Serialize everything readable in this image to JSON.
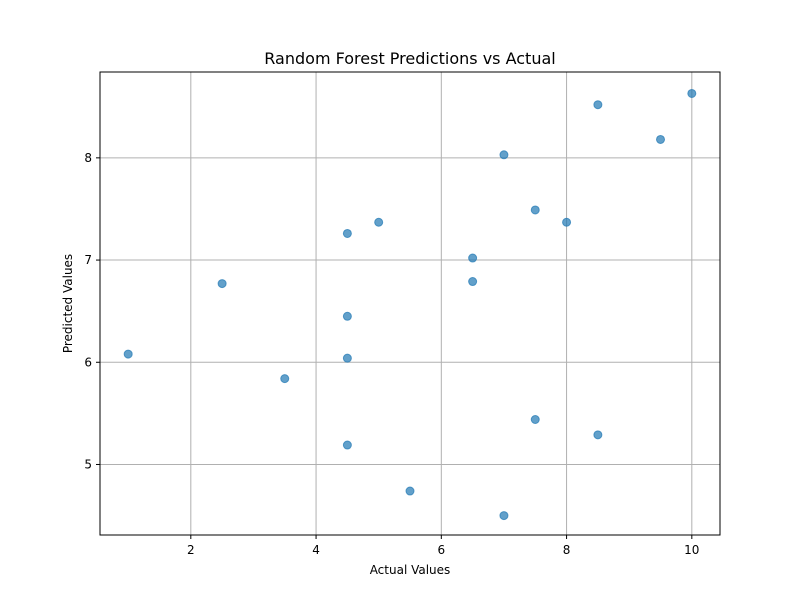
{
  "chart_data": {
    "type": "scatter",
    "title": "Random Forest Predictions vs Actual",
    "xlabel": "Actual Values",
    "ylabel": "Predicted Values",
    "xlim": [
      0.55,
      10.45
    ],
    "ylim": [
      4.31,
      8.84
    ],
    "xticks": [
      2,
      4,
      6,
      8,
      10
    ],
    "yticks": [
      5,
      6,
      7,
      8
    ],
    "grid": true,
    "color": "#1f77b4",
    "points": [
      {
        "x": 1.0,
        "y": 6.08
      },
      {
        "x": 2.5,
        "y": 6.77
      },
      {
        "x": 3.5,
        "y": 5.84
      },
      {
        "x": 4.5,
        "y": 7.26
      },
      {
        "x": 4.5,
        "y": 6.45
      },
      {
        "x": 4.5,
        "y": 6.04
      },
      {
        "x": 4.5,
        "y": 5.19
      },
      {
        "x": 5.0,
        "y": 7.37
      },
      {
        "x": 5.5,
        "y": 4.74
      },
      {
        "x": 6.5,
        "y": 7.02
      },
      {
        "x": 6.5,
        "y": 6.79
      },
      {
        "x": 7.0,
        "y": 8.03
      },
      {
        "x": 7.0,
        "y": 4.5
      },
      {
        "x": 7.5,
        "y": 7.49
      },
      {
        "x": 7.5,
        "y": 5.44
      },
      {
        "x": 8.0,
        "y": 7.37
      },
      {
        "x": 8.5,
        "y": 8.52
      },
      {
        "x": 8.5,
        "y": 5.29
      },
      {
        "x": 9.5,
        "y": 8.18
      },
      {
        "x": 10.0,
        "y": 8.63
      }
    ]
  }
}
